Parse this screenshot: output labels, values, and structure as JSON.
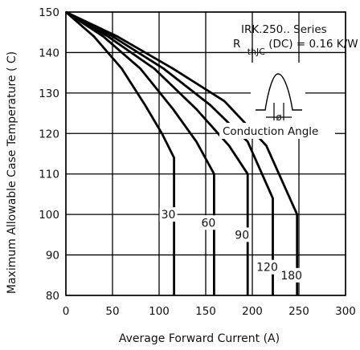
{
  "chart_data": {
    "type": "line",
    "xlabel": "Average Forward Current (A)",
    "ylabel": "Maximum Allowable Case Temperature ( C)",
    "xlim": [
      0,
      300
    ],
    "ylim": [
      80,
      150
    ],
    "x_ticks": [
      "0",
      "50",
      "100",
      "150",
      "200",
      "250",
      "300"
    ],
    "y_ticks": [
      "80",
      "90",
      "100",
      "110",
      "120",
      "130",
      "140",
      "150"
    ],
    "grid": true,
    "annotations": {
      "series_title": "IRK.250.. Series",
      "rth_main": "R",
      "rth_sub": "thJC",
      "rth_rest": "(DC) = 0.16 K/W",
      "phi": "ø",
      "conduction_angle": "Conduction Angle"
    },
    "series": [
      {
        "name": "30",
        "points": [
          [
            0,
            150
          ],
          [
            30,
            144
          ],
          [
            60,
            136
          ],
          [
            85,
            127
          ],
          [
            103,
            120
          ],
          [
            116,
            114
          ],
          [
            116,
            80
          ]
        ]
      },
      {
        "name": "60",
        "points": [
          [
            0,
            150
          ],
          [
            40,
            144
          ],
          [
            80,
            136
          ],
          [
            115,
            126
          ],
          [
            140,
            118
          ],
          [
            159,
            110
          ],
          [
            159,
            80
          ]
        ]
      },
      {
        "name": "90",
        "points": [
          [
            0,
            150
          ],
          [
            45,
            144
          ],
          [
            95,
            136
          ],
          [
            140,
            126
          ],
          [
            175,
            117
          ],
          [
            195,
            110
          ],
          [
            195,
            80
          ]
        ]
      },
      {
        "name": "120",
        "points": [
          [
            0,
            150
          ],
          [
            50,
            144
          ],
          [
            105,
            136
          ],
          [
            155,
            127
          ],
          [
            195,
            118
          ],
          [
            222,
            104
          ],
          [
            222,
            80
          ]
        ]
      },
      {
        "name": "180",
        "points": [
          [
            0,
            150
          ],
          [
            55,
            144
          ],
          [
            115,
            136
          ],
          [
            170,
            128
          ],
          [
            215,
            117
          ],
          [
            248,
            100
          ],
          [
            248,
            80
          ]
        ]
      }
    ]
  }
}
